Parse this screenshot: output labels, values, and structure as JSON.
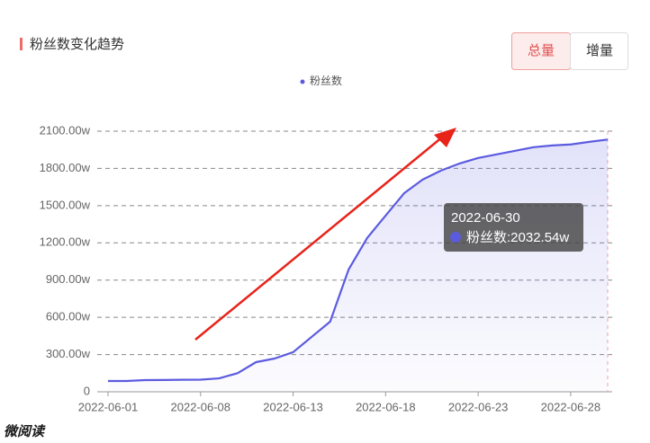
{
  "header": {
    "title": "粉丝数变化趋势",
    "buttons": [
      "总量",
      "增量"
    ],
    "active_button": 0
  },
  "chart_data": {
    "type": "line",
    "categories": [
      "2022-06-01",
      null,
      null,
      null,
      null,
      "2022-06-08",
      null,
      null,
      null,
      null,
      "2022-06-13",
      null,
      null,
      null,
      null,
      "2022-06-18",
      null,
      null,
      null,
      null,
      "2022-06-23",
      null,
      null,
      null,
      null,
      "2022-06-28",
      null,
      null
    ],
    "series": [
      {
        "name": "粉丝数",
        "color": "#5b5be0",
        "values": [
          87,
          87,
          94,
          95,
          97,
          98,
          108,
          150,
          239,
          268,
          319,
          442,
          565,
          985,
          1239,
          1420,
          1600,
          1710,
          1783,
          1840,
          1884,
          1913,
          1942,
          1971,
          1985,
          1993,
          2014,
          2032.54
        ]
      }
    ],
    "ylim": [
      0,
      2100
    ],
    "yticks": [
      0,
      {
        "value": 300,
        "label": "300.00w"
      },
      {
        "value": 600,
        "label": "600.00w"
      },
      {
        "value": 900,
        "label": "900.00w"
      },
      {
        "value": 1200,
        "label": "1200.00w"
      },
      {
        "value": 1500,
        "label": "1500.00w"
      },
      {
        "value": 1800,
        "label": "1800.00w"
      },
      {
        "value": 2100,
        "label": "2100.00w"
      }
    ],
    "grid": true,
    "tooltip": {
      "index": 27,
      "title": "2022-06-30",
      "text": "粉丝数:2032.54w"
    }
  },
  "watermark": "微阅读"
}
